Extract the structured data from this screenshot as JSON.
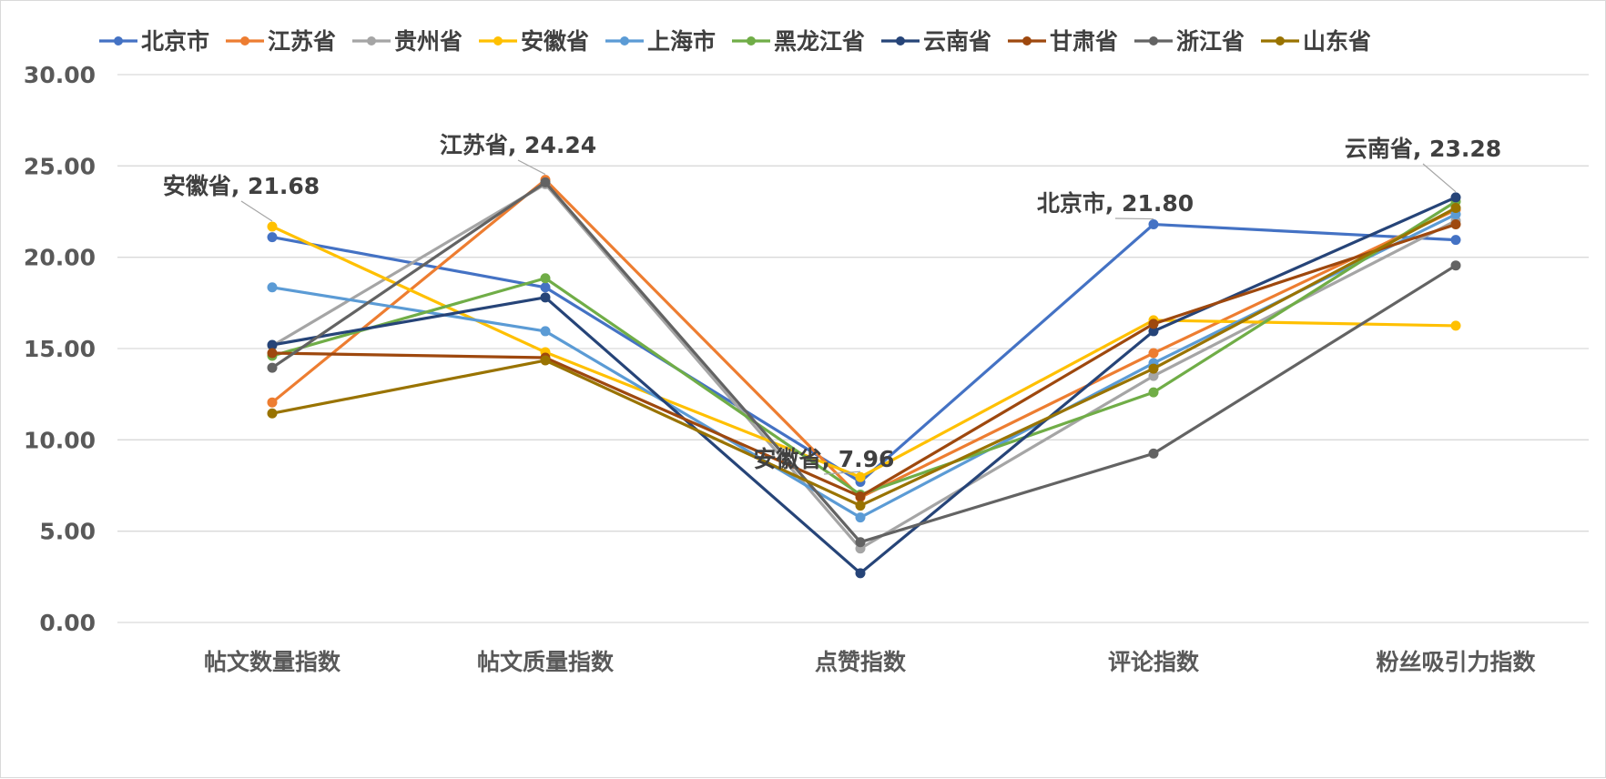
{
  "chart_data": {
    "type": "line",
    "categories": [
      "帖文数量指数",
      "帖文质量指数",
      "点赞指数",
      "评论指数",
      "粉丝吸引力指数"
    ],
    "ylim": [
      0,
      30
    ],
    "yticks": [
      "0.00",
      "5.00",
      "10.00",
      "15.00",
      "20.00",
      "25.00",
      "30.00"
    ],
    "grid": true,
    "legend_position": "top",
    "series": [
      {
        "name": "北京市",
        "color": "#4472C4",
        "values": [
          21.1,
          18.35,
          7.7,
          21.8,
          20.95
        ]
      },
      {
        "name": "江苏省",
        "color": "#ED7D31",
        "values": [
          12.05,
          24.24,
          6.85,
          14.75,
          22.6
        ]
      },
      {
        "name": "贵州省",
        "color": "#A5A5A5",
        "values": [
          15.15,
          24.0,
          4.05,
          13.5,
          22.0
        ]
      },
      {
        "name": "安徽省",
        "color": "#FFC000",
        "values": [
          21.68,
          14.8,
          7.96,
          16.55,
          16.25
        ]
      },
      {
        "name": "上海市",
        "color": "#5B9BD5",
        "values": [
          18.35,
          15.95,
          5.75,
          14.2,
          22.35
        ]
      },
      {
        "name": "黑龙江省",
        "color": "#70AD47",
        "values": [
          14.6,
          18.85,
          7.0,
          12.6,
          23.05
        ]
      },
      {
        "name": "云南省",
        "color": "#264478",
        "values": [
          15.2,
          17.8,
          2.7,
          15.95,
          23.28
        ]
      },
      {
        "name": "甘肃省",
        "color": "#9E480E",
        "values": [
          14.75,
          14.5,
          6.9,
          16.35,
          21.8
        ]
      },
      {
        "name": "浙江省",
        "color": "#636363",
        "values": [
          13.95,
          24.1,
          4.4,
          9.25,
          19.55
        ]
      },
      {
        "name": "山东省",
        "color": "#997300",
        "values": [
          11.45,
          14.35,
          6.4,
          13.9,
          22.7
        ]
      }
    ],
    "annotations": [
      {
        "text": "安徽省, 21.68",
        "series": 3,
        "category": 0
      },
      {
        "text": "江苏省, 24.24",
        "series": 1,
        "category": 1
      },
      {
        "text": "安徽省, 7.96",
        "series": 3,
        "category": 2
      },
      {
        "text": "北京市, 21.80",
        "series": 0,
        "category": 3
      },
      {
        "text": "云南省, 23.28",
        "series": 6,
        "category": 4
      }
    ]
  }
}
